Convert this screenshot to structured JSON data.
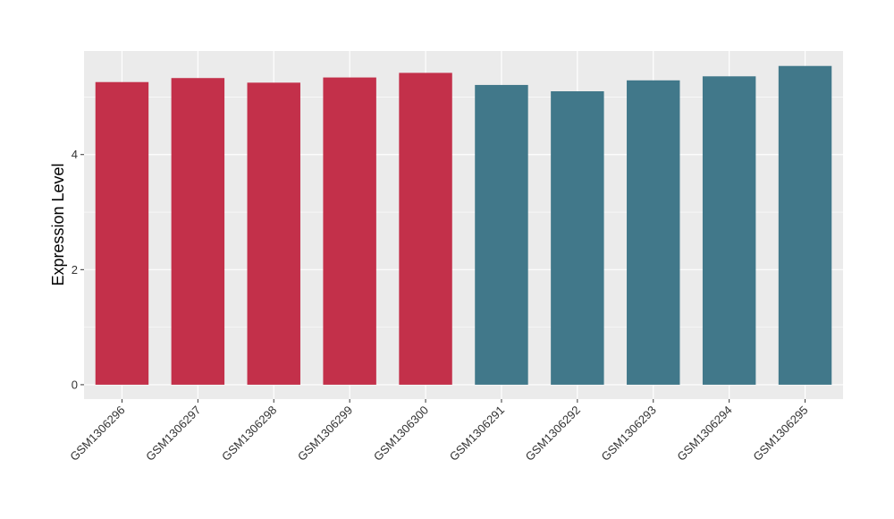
{
  "chart_data": {
    "type": "bar",
    "title": "",
    "xlabel": "",
    "ylabel": "Expression Level",
    "ylim": [
      -0.25,
      5.8
    ],
    "yticks": [
      0,
      2,
      4
    ],
    "grid": true,
    "legend": "none",
    "categories": [
      "GSM1306296",
      "GSM1306297",
      "GSM1306298",
      "GSM1306299",
      "GSM1306300",
      "GSM1306291",
      "GSM1306292",
      "GSM1306293",
      "GSM1306294",
      "GSM1306295"
    ],
    "values": [
      5.26,
      5.33,
      5.25,
      5.34,
      5.42,
      5.21,
      5.1,
      5.29,
      5.36,
      5.54
    ],
    "bar_colors": [
      "#c3304a",
      "#c3304a",
      "#c3304a",
      "#c3304a",
      "#c3304a",
      "#41788a",
      "#41788a",
      "#41788a",
      "#41788a",
      "#41788a"
    ]
  },
  "colors": {
    "panel_background": "#ebebeb",
    "grid_line": "#ffffff",
    "axis_tick": "#333333"
  }
}
